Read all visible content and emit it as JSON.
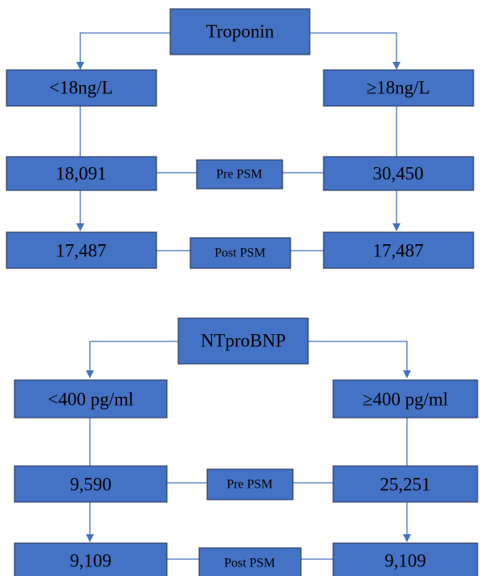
{
  "colors": {
    "box_fill": "#4472c4",
    "box_border": "#1f2f4f",
    "connector": "#4472c4",
    "text": "#000000"
  },
  "troponin": {
    "root": "Troponin",
    "left_group": "<18ng/L",
    "right_group": "≥18ng/L",
    "pre_label": "Pre PSM",
    "pre_left": "18,091",
    "pre_right": "30,450",
    "post_label": "Post PSM",
    "post_left": "17,487",
    "post_right": "17,487"
  },
  "ntprobnp": {
    "root": "NTproBNP",
    "left_group": "<400 pg/ml",
    "right_group": "≥400 pg/ml",
    "pre_label": "Pre PSM",
    "pre_left": "9,590",
    "pre_right": "25,251",
    "post_label": "Post PSM",
    "post_left": "9,109",
    "post_right": "9,109"
  }
}
